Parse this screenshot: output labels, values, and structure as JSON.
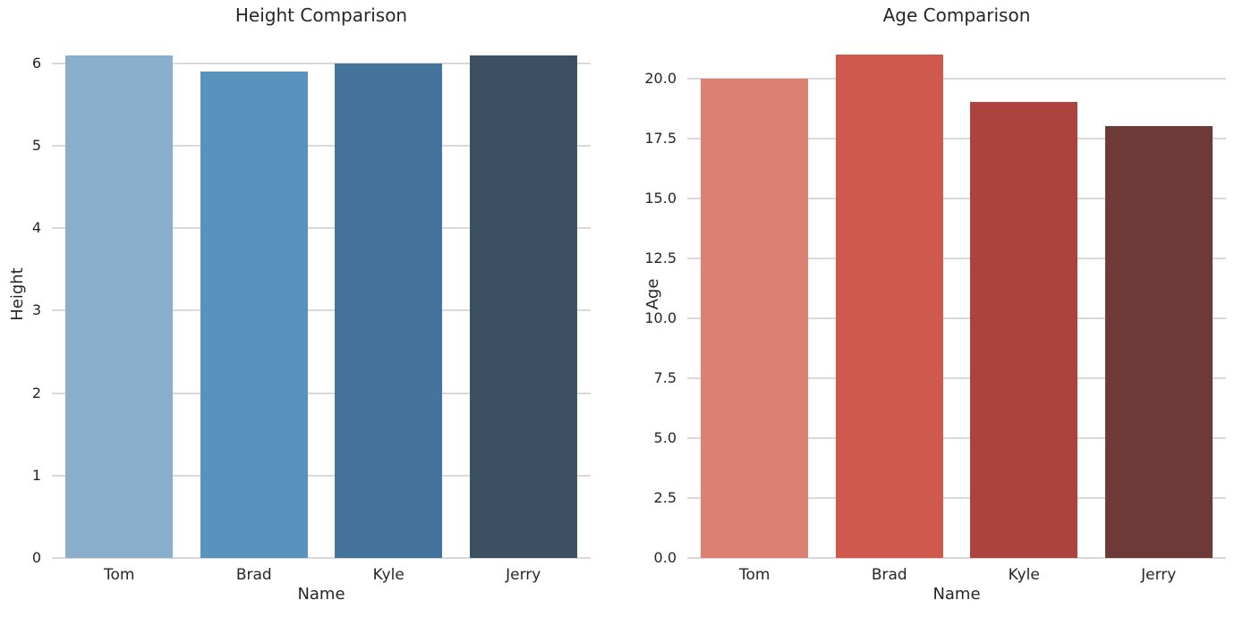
{
  "figure": {
    "background": "#ffffff",
    "text_color": "#262626",
    "grid_color": "#d9d9d9"
  },
  "chart_data": [
    {
      "type": "bar",
      "title": "Height Comparison",
      "xlabel": "Name",
      "ylabel": "Height",
      "categories": [
        "Tom",
        "Brad",
        "Kyle",
        "Jerry"
      ],
      "values": [
        6.1,
        5.9,
        6.0,
        6.1
      ],
      "bar_colors": [
        "#8aafcc",
        "#5992bd",
        "#44749c",
        "#3d4f63"
      ],
      "ylim": [
        0,
        6.4
      ],
      "yticks": [
        0,
        1,
        2,
        3,
        4,
        5,
        6
      ],
      "ytick_labels": [
        "0",
        "1",
        "2",
        "3",
        "4",
        "5",
        "6"
      ],
      "grid": true,
      "legend": false,
      "bar_width_fraction": 0.8
    },
    {
      "type": "bar",
      "title": "Age Comparison",
      "xlabel": "Name",
      "ylabel": "Age",
      "categories": [
        "Tom",
        "Brad",
        "Kyle",
        "Jerry"
      ],
      "values": [
        20,
        21,
        19,
        18
      ],
      "bar_colors": [
        "#dc8172",
        "#d0594e",
        "#ac433f",
        "#6e3a38"
      ],
      "ylim": [
        0,
        22
      ],
      "yticks": [
        0,
        2.5,
        5,
        7.5,
        10,
        12.5,
        15,
        17.5,
        20
      ],
      "ytick_labels": [
        "0.0",
        "2.5",
        "5.0",
        "7.5",
        "10.0",
        "12.5",
        "15.0",
        "17.5",
        "20.0"
      ],
      "grid": true,
      "legend": false,
      "bar_width_fraction": 0.8
    }
  ]
}
